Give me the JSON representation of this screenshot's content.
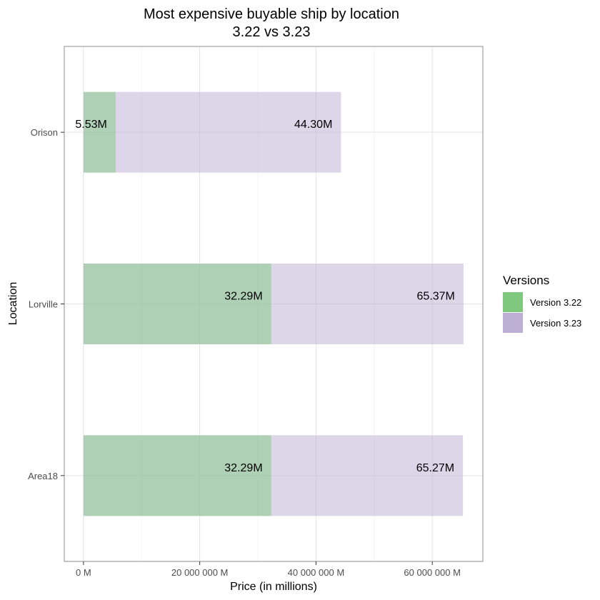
{
  "chart_data": {
    "type": "bar",
    "orientation": "horizontal",
    "stacking": "overlay",
    "title": "Most expensive buyable ship by location",
    "subtitle": "3.22 vs 3.23",
    "xlabel": "Price (in millions)",
    "ylabel": "Location",
    "xlim": [
      -3300000,
      68700000
    ],
    "x_ticks": [
      0,
      20000000,
      40000000,
      60000000
    ],
    "x_tick_labels": [
      "0 M",
      "20 000 000 M",
      "40 000 000 M",
      "60 000 000 M"
    ],
    "grid": true,
    "categories": [
      "Orison",
      "Lorville",
      "Area18"
    ],
    "series": [
      {
        "name": "Version 3.23",
        "color": "#bcaed4",
        "bar_opacity": 0.5,
        "values": [
          44300000,
          65370000,
          65270000
        ],
        "labels": [
          "44.30M",
          "65.37M",
          "65.27M"
        ]
      },
      {
        "name": "Version 3.22",
        "color": "#7fc97f",
        "bar_opacity": 0.5,
        "values": [
          5530000,
          32290000,
          32290000
        ],
        "labels": [
          "5.53M",
          "32.29M",
          "32.29M"
        ]
      }
    ],
    "legend": {
      "title": "Versions",
      "position": "right",
      "items": [
        {
          "label": "Version 3.22",
          "color": "#7fc97f"
        },
        {
          "label": "Version 3.23",
          "color": "#bcaed4"
        }
      ]
    }
  }
}
